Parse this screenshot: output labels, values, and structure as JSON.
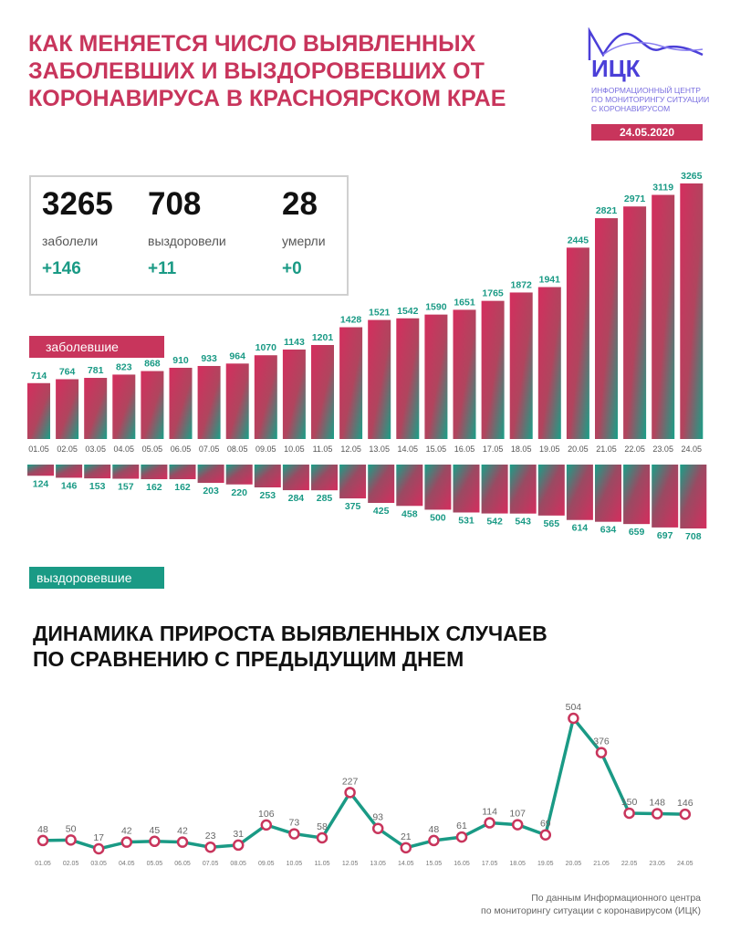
{
  "header": {
    "title_lines": [
      "КАК МЕНЯЕТСЯ ЧИСЛО ВЫЯВЛЕННЫХ",
      "ЗАБОЛЕВШИХ И ВЫЗДОРОВЕВШИХ ОТ",
      "КОРОНАВИРУСА В КРАСНОЯРСКОМ КРАЕ"
    ],
    "logo_text": "ИЦК",
    "logo_sub_lines": [
      "ИНФОРМАЦИОННЫЙ ЦЕНТР",
      "ПО МОНИТОРИНГУ СИТУАЦИИ",
      "С КОРОНАВИРУСОМ"
    ],
    "date": "24.05.2020"
  },
  "stats": {
    "sick": {
      "value": "3265",
      "label": "заболели",
      "change": "+146"
    },
    "recovered": {
      "value": "708",
      "label": "выздоровели",
      "change": "+11"
    },
    "died": {
      "value": "28",
      "label": "умерли",
      "change": "+0"
    }
  },
  "legend": {
    "sick": "заболевшие",
    "recovered": "выздоровевшие"
  },
  "subtitle_lines": [
    "ДИНАМИКА ПРИРОСТА ВЫЯВЛЕННЫХ СЛУЧАЕВ",
    "ПО СРАВНЕНИЮ С ПРЕДЫДУЩИМ ДНЕМ"
  ],
  "source_lines": [
    "По данным Информационного центра",
    "по мониторингу ситуации с коронавирусом (ИЦК)"
  ],
  "colors": {
    "accent": "#c8355c",
    "teal": "#1a9a85",
    "logo": "#4b3fd8"
  },
  "chart_data": [
    {
      "type": "bar",
      "categories": [
        "01.05",
        "02.05",
        "03.05",
        "04.05",
        "05.05",
        "06.05",
        "07.05",
        "08.05",
        "09.05",
        "10.05",
        "11.05",
        "12.05",
        "13.05",
        "14.05",
        "15.05",
        "16.05",
        "17.05",
        "18.05",
        "19.05",
        "20.05",
        "21.05",
        "22.05",
        "23.05",
        "24.05"
      ],
      "series": [
        {
          "name": "заболевшие",
          "values": [
            714,
            764,
            781,
            823,
            868,
            910,
            933,
            964,
            1070,
            1143,
            1201,
            1428,
            1521,
            1542,
            1590,
            1651,
            1765,
            1872,
            1941,
            2445,
            2821,
            2971,
            3119,
            3265
          ]
        },
        {
          "name": "выздоровевшие",
          "values": [
            124,
            146,
            153,
            157,
            162,
            162,
            203,
            220,
            253,
            284,
            285,
            375,
            425,
            458,
            500,
            531,
            542,
            543,
            565,
            614,
            634,
            659,
            697,
            708
          ]
        }
      ]
    },
    {
      "type": "line",
      "x": [
        "01.05",
        "02.05",
        "03.05",
        "04.05",
        "05.05",
        "06.05",
        "07.05",
        "08.05",
        "09.05",
        "10.05",
        "11.05",
        "12.05",
        "13.05",
        "14.05",
        "15.05",
        "16.05",
        "17.05",
        "18.05",
        "19.05",
        "20.05",
        "21.05",
        "22.05",
        "23.05",
        "24.05"
      ],
      "values": [
        48,
        50,
        17,
        42,
        45,
        42,
        23,
        31,
        106,
        73,
        58,
        227,
        93,
        21,
        48,
        61,
        114,
        107,
        69,
        504,
        376,
        150,
        148,
        146
      ],
      "labels": [
        "48",
        "50",
        "17",
        "42",
        "45",
        "42",
        "23",
        "31",
        "106",
        "73",
        "58",
        "227",
        "93",
        "21",
        "48",
        "61",
        "114",
        "107",
        "69",
        "504",
        "376",
        "150",
        "148",
        "146"
      ]
    }
  ]
}
